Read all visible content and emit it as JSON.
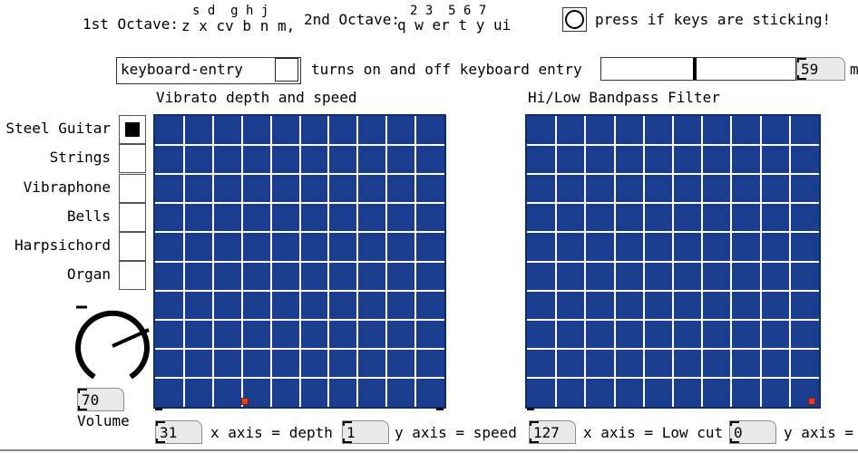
{
  "keys": {
    "first_label": "1st Octave:",
    "first_top": "s d  g h j",
    "first_bottom": "z x cv b n m,",
    "second_label": "2nd Octave:",
    "second_top": "2 3  5 6 7",
    "second_bottom": "q w er t y ui"
  },
  "sticking": {
    "label": "press if keys are sticking!"
  },
  "keyboard_entry": {
    "field_value": "keyboard-entry",
    "description": "turns on and off keyboard entry",
    "slider_value": "59",
    "unit_fragment": "m",
    "slider_level_percent": 48
  },
  "vibrato": {
    "title": "Vibrato depth and speed",
    "depth_value": "31",
    "depth_caption": "x axis = depth",
    "speed_value": "1",
    "speed_caption": "y axis = speed"
  },
  "filter": {
    "title": "Hi/Low Bandpass Filter",
    "low_value": "127",
    "low_caption": "x axis = Low cut",
    "high_value": "0",
    "high_caption": "y axis ="
  },
  "instruments": {
    "items": [
      {
        "label": "Steel Guitar",
        "selected": true
      },
      {
        "label": "Strings",
        "selected": false
      },
      {
        "label": "Vibraphone",
        "selected": false
      },
      {
        "label": "Bells",
        "selected": false
      },
      {
        "label": "Harpsichord",
        "selected": false
      },
      {
        "label": "Organ",
        "selected": false
      }
    ]
  },
  "volume": {
    "value": "70",
    "label": "Volume"
  },
  "colors": {
    "grid_fill": "#1a3d8f",
    "grid_lines": "#ffffff",
    "marker": "#e0411a"
  }
}
